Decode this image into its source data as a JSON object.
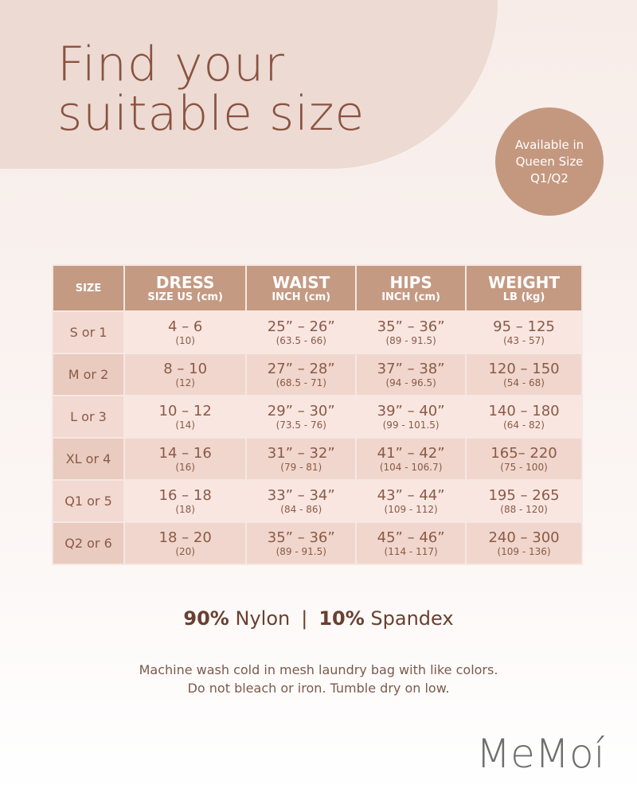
{
  "header": {
    "title_lines": [
      "Find your",
      "suitable size"
    ]
  },
  "badge": {
    "lines": [
      "Available in",
      "Queen Size",
      "Q1/Q2"
    ]
  },
  "table": {
    "columns": [
      {
        "title": "SIZE"
      },
      {
        "title": "DRESS",
        "subtitle": "SIZE US (cm)"
      },
      {
        "title": "WAIST",
        "subtitle": "INCH (cm)"
      },
      {
        "title": "HIPS",
        "subtitle": "INCH (cm)"
      },
      {
        "title": "WEIGHT",
        "subtitle": "LB (kg)"
      }
    ],
    "rows": [
      [
        {
          "main": "S or 1"
        },
        {
          "main": "4 – 6",
          "sub": "(10)"
        },
        {
          "main": "25” – 26”",
          "sub": "(63.5 - 66)"
        },
        {
          "main": "35” – 36”",
          "sub": "(89 - 91.5)"
        },
        {
          "main": "95 – 125",
          "sub": "(43 - 57)"
        }
      ],
      [
        {
          "main": "M or 2"
        },
        {
          "main": "8 – 10",
          "sub": "(12)"
        },
        {
          "main": "27” – 28”",
          "sub": "(68.5 - 71)"
        },
        {
          "main": "37” – 38”",
          "sub": "(94 - 96.5)"
        },
        {
          "main": "120 – 150",
          "sub": "(54 - 68)"
        }
      ],
      [
        {
          "main": "L or 3"
        },
        {
          "main": "10 – 12",
          "sub": "(14)"
        },
        {
          "main": "29” – 30”",
          "sub": "(73.5 - 76)"
        },
        {
          "main": "39” – 40”",
          "sub": "(99 - 101.5)"
        },
        {
          "main": "140 – 180",
          "sub": "(64 - 82)"
        }
      ],
      [
        {
          "main": "XL or 4"
        },
        {
          "main": "14 – 16",
          "sub": "(16)"
        },
        {
          "main": "31” – 32”",
          "sub": "(79 - 81)"
        },
        {
          "main": "41” – 42”",
          "sub": "(104 - 106.7)"
        },
        {
          "main": "165– 220",
          "sub": "(75 - 100)"
        }
      ],
      [
        {
          "main": "Q1 or 5"
        },
        {
          "main": "16 – 18",
          "sub": "(18)"
        },
        {
          "main": "33” – 34”",
          "sub": "(84 - 86)"
        },
        {
          "main": "43” – 44”",
          "sub": "(109 - 112)"
        },
        {
          "main": "195 – 265",
          "sub": "(88 - 120)"
        }
      ],
      [
        {
          "main": "Q2 or 6"
        },
        {
          "main": "18 – 20",
          "sub": "(20)"
        },
        {
          "main": "35” – 36”",
          "sub": "(89 - 91.5)"
        },
        {
          "main": "45” – 46”",
          "sub": "(114 - 117)"
        },
        {
          "main": "240 – 300",
          "sub": "(109 - 136)"
        }
      ]
    ]
  },
  "material": {
    "parts": [
      {
        "percent": "90%",
        "fiber": "Nylon"
      },
      {
        "percent": "10%",
        "fiber": "Spandex"
      }
    ],
    "separator": "|"
  },
  "care": [
    "Machine wash cold in mesh laundry bag with like colors.",
    "Do not bleach or iron. Tumble dry on low."
  ],
  "logo": "MeMoí"
}
